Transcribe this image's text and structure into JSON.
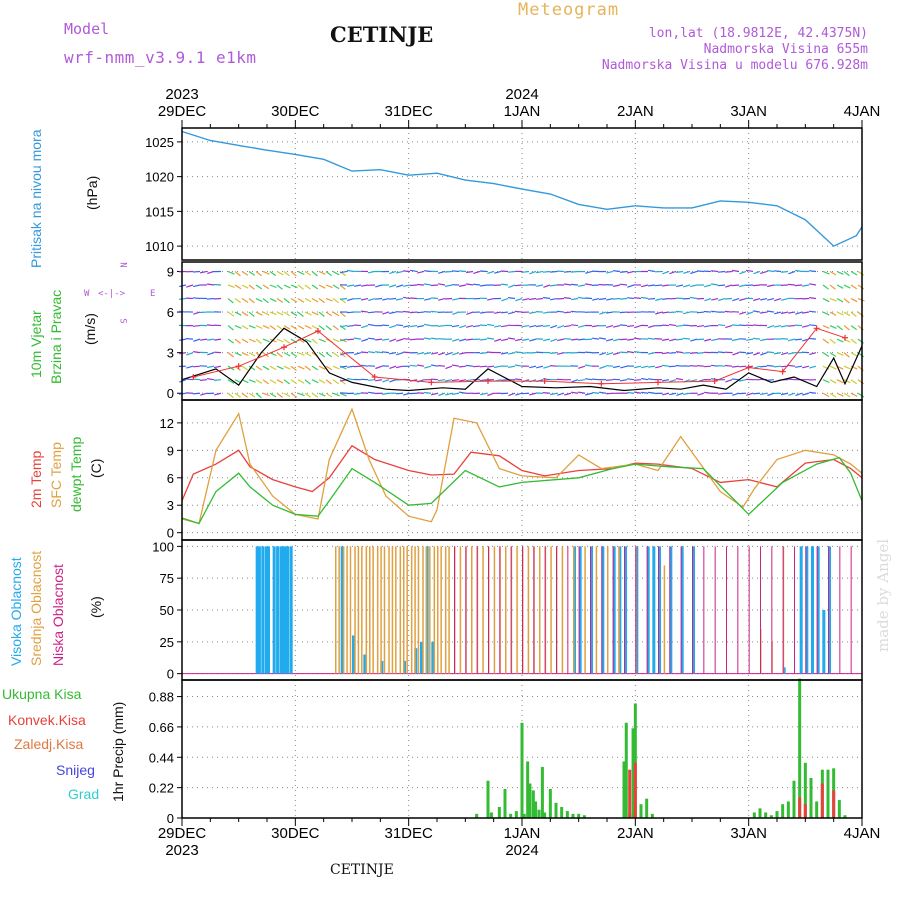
{
  "header": {
    "model_label": "Model",
    "model_name": "wrf-nmm_v3.9.1 e1km",
    "product": "Meteogram",
    "station": "CETINJE",
    "coords": "lon,lat (18.9812E, 42.4375N)",
    "altitude": "Nadmorska Visina 655m",
    "model_altitude": "Nadmorska Visina u modelu 676.928m"
  },
  "footer": {
    "station": "CETINJE",
    "credit": "made by Angel"
  },
  "time_axis": {
    "ticks": [
      "29DEC",
      "30DEC",
      "31DEC",
      "1JAN",
      "2JAN",
      "3JAN",
      "4JAN"
    ],
    "year_labels": [
      {
        "label": "2023",
        "at": 0
      },
      {
        "label": "2024",
        "at": 3
      }
    ]
  },
  "colors": {
    "pressure": "#3399dd",
    "temp2m": "#e8413c",
    "sfc_temp": "#e0a040",
    "dewpoint": "#33bb33",
    "high_cloud": "#22aaee",
    "mid_cloud": "#e0a040",
    "low_cloud": "#cc2288",
    "total_precip": "#33bb33",
    "conv_precip": "#e8413c",
    "frozen_precip": "#e07840",
    "snow": "#4444dd",
    "graupel": "#33cccc",
    "wind_speed": "#000000",
    "gust": "#ee3333"
  },
  "chart_data": [
    {
      "type": "line",
      "name": "pressure",
      "title": "Pritisak na nivou mora",
      "ylabel": "(hPa)",
      "ylim": [
        1008,
        1027
      ],
      "yticks": [
        1010,
        1015,
        1020,
        1025
      ],
      "x_days": [
        0,
        0.25,
        0.5,
        0.75,
        1.0,
        1.25,
        1.5,
        1.75,
        2.0,
        2.25,
        2.5,
        2.75,
        3.0,
        3.25,
        3.5,
        3.75,
        4.0,
        4.25,
        4.5,
        4.75,
        5.0,
        5.25,
        5.5,
        5.75,
        5.95,
        6.0
      ],
      "values": [
        1026.5,
        1025.2,
        1024.5,
        1023.8,
        1023.2,
        1022.5,
        1020.8,
        1021.0,
        1020.2,
        1020.5,
        1019.5,
        1019.0,
        1018.2,
        1017.5,
        1016.0,
        1015.3,
        1015.8,
        1015.5,
        1015.5,
        1016.5,
        1016.3,
        1015.8,
        1013.8,
        1010.0,
        1011.5,
        1012.8
      ],
      "grid": true
    },
    {
      "type": "line",
      "name": "wind",
      "title": "10m Vjetar",
      "subtitle": "Brzina i Pravac",
      "ylabel": "(m/s)",
      "compass": [
        "N",
        "E",
        "S",
        "W"
      ],
      "ylim": [
        -0.5,
        9.7
      ],
      "yticks": [
        0,
        3,
        6,
        9
      ],
      "series": [
        {
          "name": "speed",
          "x_days": [
            0,
            0.3,
            0.5,
            0.7,
            0.9,
            1.1,
            1.3,
            1.5,
            1.8,
            2.0,
            2.3,
            2.5,
            2.7,
            3.0,
            3.3,
            3.6,
            3.9,
            4.2,
            4.4,
            4.6,
            4.8,
            5.0,
            5.2,
            5.4,
            5.6,
            5.75,
            5.85,
            6.0
          ],
          "values": [
            1.0,
            1.8,
            0.6,
            3.0,
            4.8,
            3.8,
            1.5,
            0.8,
            0.3,
            0.2,
            0.4,
            0.3,
            1.8,
            0.5,
            0.4,
            0.5,
            0.2,
            0.4,
            0.3,
            0.6,
            0.3,
            1.5,
            0.8,
            1.2,
            0.5,
            2.6,
            0.7,
            3.5
          ]
        },
        {
          "name": "gust",
          "x_days": [
            0.1,
            0.5,
            0.9,
            1.2,
            1.7,
            2.2,
            2.7,
            3.2,
            3.7,
            4.2,
            4.7,
            5.0,
            5.3,
            5.6,
            5.85
          ],
          "values": [
            1.2,
            2.0,
            3.4,
            4.6,
            1.2,
            0.8,
            0.9,
            0.9,
            0.7,
            0.8,
            0.9,
            1.9,
            1.6,
            4.8,
            4.1
          ]
        }
      ],
      "barb_levels": [
        0,
        1,
        2,
        3,
        4,
        5,
        6,
        7,
        8,
        9
      ],
      "grid": true
    },
    {
      "type": "line",
      "name": "temperature",
      "title": "2m Temp",
      "series_labels": [
        "2m Temp",
        "SFC Temp",
        "dewpt Temp"
      ],
      "ylabel": "(C)",
      "ylim": [
        -0.8,
        14.5
      ],
      "yticks": [
        0,
        3,
        6,
        9,
        12
      ],
      "series": [
        {
          "name": "2m Temp",
          "x_days": [
            0,
            0.1,
            0.3,
            0.5,
            0.6,
            0.8,
            1.0,
            1.15,
            1.3,
            1.5,
            1.7,
            2.0,
            2.2,
            2.4,
            2.55,
            2.8,
            3.0,
            3.2,
            3.5,
            3.8,
            4.0,
            4.2,
            4.5,
            4.75,
            5.0,
            5.25,
            5.5,
            5.75,
            5.9,
            6.0
          ],
          "values": [
            3.5,
            6.4,
            7.5,
            9.0,
            7.2,
            5.8,
            5.0,
            4.5,
            6.0,
            9.5,
            8.0,
            6.8,
            6.3,
            6.4,
            8.8,
            8.4,
            6.8,
            6.2,
            6.8,
            7.0,
            7.6,
            7.5,
            7.0,
            5.5,
            5.8,
            5.0,
            7.6,
            8.0,
            7.0,
            6.0
          ]
        },
        {
          "name": "SFC Temp",
          "x_days": [
            0,
            0.15,
            0.3,
            0.5,
            0.6,
            0.8,
            1.0,
            1.2,
            1.3,
            1.5,
            1.65,
            1.8,
            2.0,
            2.2,
            2.25,
            2.4,
            2.6,
            2.8,
            3.0,
            3.3,
            3.5,
            3.7,
            4.0,
            4.2,
            4.4,
            4.75,
            4.95,
            5.05,
            5.25,
            5.5,
            5.75,
            5.9,
            6.0
          ],
          "values": [
            1.5,
            1.0,
            9.0,
            13.0,
            7.5,
            4.0,
            2.0,
            1.5,
            8.0,
            13.5,
            8.0,
            4.0,
            1.8,
            1.2,
            2.5,
            12.5,
            12.0,
            7.0,
            6.2,
            6.0,
            8.5,
            7.0,
            7.5,
            6.8,
            10.5,
            4.5,
            2.8,
            4.8,
            8.0,
            9.0,
            8.5,
            7.5,
            6.5
          ]
        },
        {
          "name": "dewpt Temp",
          "x_days": [
            0,
            0.15,
            0.3,
            0.5,
            0.6,
            0.8,
            1.0,
            1.2,
            1.3,
            1.5,
            1.7,
            2.0,
            2.2,
            2.5,
            2.8,
            3.0,
            3.5,
            3.8,
            4.0,
            4.3,
            4.6,
            4.8,
            5.0,
            5.3,
            5.6,
            5.8,
            5.9,
            6.0
          ],
          "values": [
            1.6,
            1.0,
            4.5,
            6.5,
            5.0,
            3.0,
            2.0,
            1.8,
            3.5,
            7.0,
            5.5,
            3.0,
            3.2,
            6.8,
            5.0,
            5.5,
            6.0,
            7.0,
            7.5,
            7.2,
            7.0,
            4.5,
            2.0,
            5.5,
            7.5,
            8.2,
            6.5,
            3.5
          ]
        }
      ],
      "grid": true
    },
    {
      "type": "bar",
      "name": "cloud",
      "series_labels": [
        "Visoka Oblacnost",
        "Srednja Oblacnost",
        "Niska Oblacnost"
      ],
      "ylabel": "(%)",
      "ylim": [
        -5,
        105
      ],
      "yticks": [
        0,
        25,
        50,
        75,
        100
      ],
      "series": [
        {
          "name": "Visoka Oblacnost",
          "x_days": [
            0.65,
            0.67,
            0.7,
            0.73,
            0.75,
            0.8,
            0.83,
            0.86,
            0.88,
            0.9,
            0.92,
            0.95,
            1.4,
            1.5,
            1.6,
            1.75,
            1.95,
            2.05,
            2.1,
            2.15,
            2.2,
            3.45,
            3.5,
            3.6,
            3.7,
            3.8,
            3.85,
            3.9,
            4.0,
            4.1,
            4.15,
            4.2,
            4.3,
            4.4,
            4.5,
            5.3,
            5.45,
            5.5,
            5.55,
            5.6,
            5.65,
            5.7
          ],
          "values": [
            100,
            100,
            100,
            100,
            100,
            100,
            100,
            100,
            100,
            100,
            100,
            100,
            100,
            30,
            15,
            10,
            10,
            20,
            25,
            100,
            25,
            100,
            100,
            100,
            100,
            100,
            100,
            100,
            100,
            100,
            100,
            100,
            100,
            100,
            100,
            5,
            100,
            100,
            100,
            100,
            50,
            100
          ]
        },
        {
          "name": "Srednja Oblacnost",
          "x_days": [
            1.35,
            1.38,
            1.42,
            1.45,
            1.48,
            1.52,
            1.55,
            1.58,
            1.62,
            1.65,
            1.68,
            1.72,
            1.75,
            1.78,
            1.82,
            1.85,
            1.88,
            1.92,
            1.95,
            1.98,
            2.02,
            2.05,
            2.08,
            2.12,
            2.15,
            2.18,
            2.22,
            2.25,
            2.28,
            2.32,
            2.35,
            2.4,
            2.45,
            2.5,
            2.55,
            2.6,
            2.65,
            2.7,
            2.75,
            2.8,
            2.85,
            2.9,
            2.95,
            3.0,
            3.05,
            3.1,
            3.15,
            3.2,
            3.25,
            3.3,
            3.35,
            3.45,
            3.55,
            3.65,
            3.75,
            3.85,
            4.0,
            4.25,
            5.1,
            5.2,
            5.3
          ],
          "values": [
            100,
            100,
            100,
            100,
            100,
            100,
            100,
            100,
            100,
            100,
            100,
            100,
            100,
            100,
            100,
            100,
            100,
            100,
            100,
            100,
            100,
            100,
            100,
            100,
            100,
            100,
            100,
            100,
            100,
            100,
            100,
            100,
            100,
            100,
            100,
            100,
            100,
            100,
            100,
            100,
            100,
            100,
            100,
            100,
            100,
            100,
            100,
            100,
            100,
            100,
            100,
            100,
            100,
            100,
            100,
            100,
            100,
            85,
            35,
            25,
            100
          ]
        },
        {
          "name": "Niska Oblacnost",
          "x_days": [
            2.4,
            2.5,
            2.6,
            2.7,
            2.8,
            2.9,
            3.0,
            3.1,
            3.2,
            3.3,
            3.4,
            3.5,
            3.6,
            3.7,
            3.8,
            3.9,
            4.0,
            4.1,
            4.2,
            4.3,
            4.4,
            4.5,
            4.6,
            4.7,
            4.8,
            4.9,
            5.0,
            5.1,
            5.2,
            5.3,
            5.4,
            5.5,
            5.6,
            5.7,
            5.8,
            5.9
          ],
          "values": [
            100,
            100,
            100,
            100,
            100,
            100,
            100,
            100,
            100,
            100,
            100,
            100,
            100,
            100,
            100,
            100,
            100,
            100,
            100,
            100,
            100,
            100,
            100,
            100,
            100,
            100,
            100,
            100,
            100,
            100,
            100,
            100,
            100,
            100,
            100,
            100
          ]
        }
      ],
      "grid": true
    },
    {
      "type": "bar",
      "name": "precipitation",
      "series_labels": [
        "Ukupna Kisa",
        "Konvek.Kisa",
        "Zaledj.Kisa",
        "Snijeg",
        "Grad"
      ],
      "ylabel": "1hr Precip (mm)",
      "ylim": [
        0,
        1.0
      ],
      "yticks": [
        0,
        0.22,
        0.44,
        0.66,
        0.88
      ],
      "series": [
        {
          "name": "Ukupna Kisa",
          "x_days": [
            2.6,
            2.7,
            2.73,
            2.8,
            2.85,
            2.9,
            2.95,
            3.0,
            3.02,
            3.05,
            3.07,
            3.1,
            3.12,
            3.15,
            3.18,
            3.2,
            3.25,
            3.3,
            3.35,
            3.4,
            3.45,
            3.5,
            3.55,
            3.9,
            3.92,
            3.95,
            3.98,
            4.0,
            4.05,
            4.1,
            4.15,
            5.05,
            5.1,
            5.15,
            5.2,
            5.25,
            5.3,
            5.35,
            5.4,
            5.45,
            5.5,
            5.55,
            5.6,
            5.65,
            5.7,
            5.75,
            5.8,
            5.85
          ],
          "values": [
            0.03,
            0.27,
            0.04,
            0.08,
            0.21,
            0.03,
            0.05,
            0.69,
            0.03,
            0.41,
            0.25,
            0.2,
            0.12,
            0.06,
            0.37,
            0.04,
            0.21,
            0.11,
            0.08,
            0.05,
            0.03,
            0.03,
            0.02,
            0.41,
            0.69,
            0.03,
            0.65,
            0.83,
            0.1,
            0.14,
            0.03,
            0.04,
            0.07,
            0.04,
            0.02,
            0.05,
            0.1,
            0.12,
            0.27,
            1.01,
            0.4,
            0.29,
            0.12,
            0.35,
            0.35,
            0.36,
            0.13,
            0.02
          ]
        },
        {
          "name": "Konvek.Kisa",
          "x_days": [
            3.95,
            4.0,
            5.45,
            5.5,
            5.65,
            5.75
          ],
          "values": [
            0.35,
            0.4,
            0.15,
            0.1,
            0.25,
            0.2
          ]
        }
      ],
      "grid": true
    }
  ]
}
